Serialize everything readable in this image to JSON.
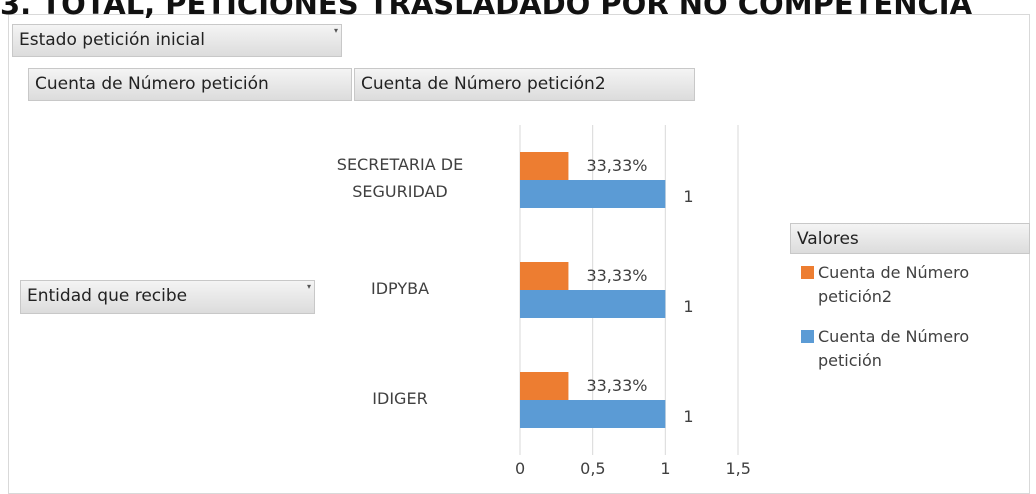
{
  "chart_data": {
    "type": "bar",
    "orientation": "horizontal",
    "title": "3. TOTAL, PETICIONES TRASLADADO POR NO COMPETENCIA",
    "filter_field": "Estado petición inicial",
    "row_field": "Entidad que recibe",
    "legend_title": "Valores",
    "categories": [
      "SECRETARIA DE SEGURIDAD",
      "IDPYBA",
      "IDIGER"
    ],
    "series": [
      {
        "name": "Cuenta de Número petición2",
        "color": "#ed7d31",
        "values": [
          0.3333,
          0.3333,
          0.3333
        ],
        "value_labels": [
          "33,33%",
          "33,33%",
          "33,33%"
        ]
      },
      {
        "name": "Cuenta de Número petición",
        "color": "#5b9bd5",
        "values": [
          1,
          1,
          1
        ]
      }
    ],
    "xlim": [
      0,
      1.5
    ],
    "xticks": [
      0,
      {
        "value": 0.5,
        "label": "0,5"
      },
      1,
      {
        "value": 1.5,
        "label": "1,5"
      }
    ],
    "grid": true,
    "legend": "right"
  }
}
